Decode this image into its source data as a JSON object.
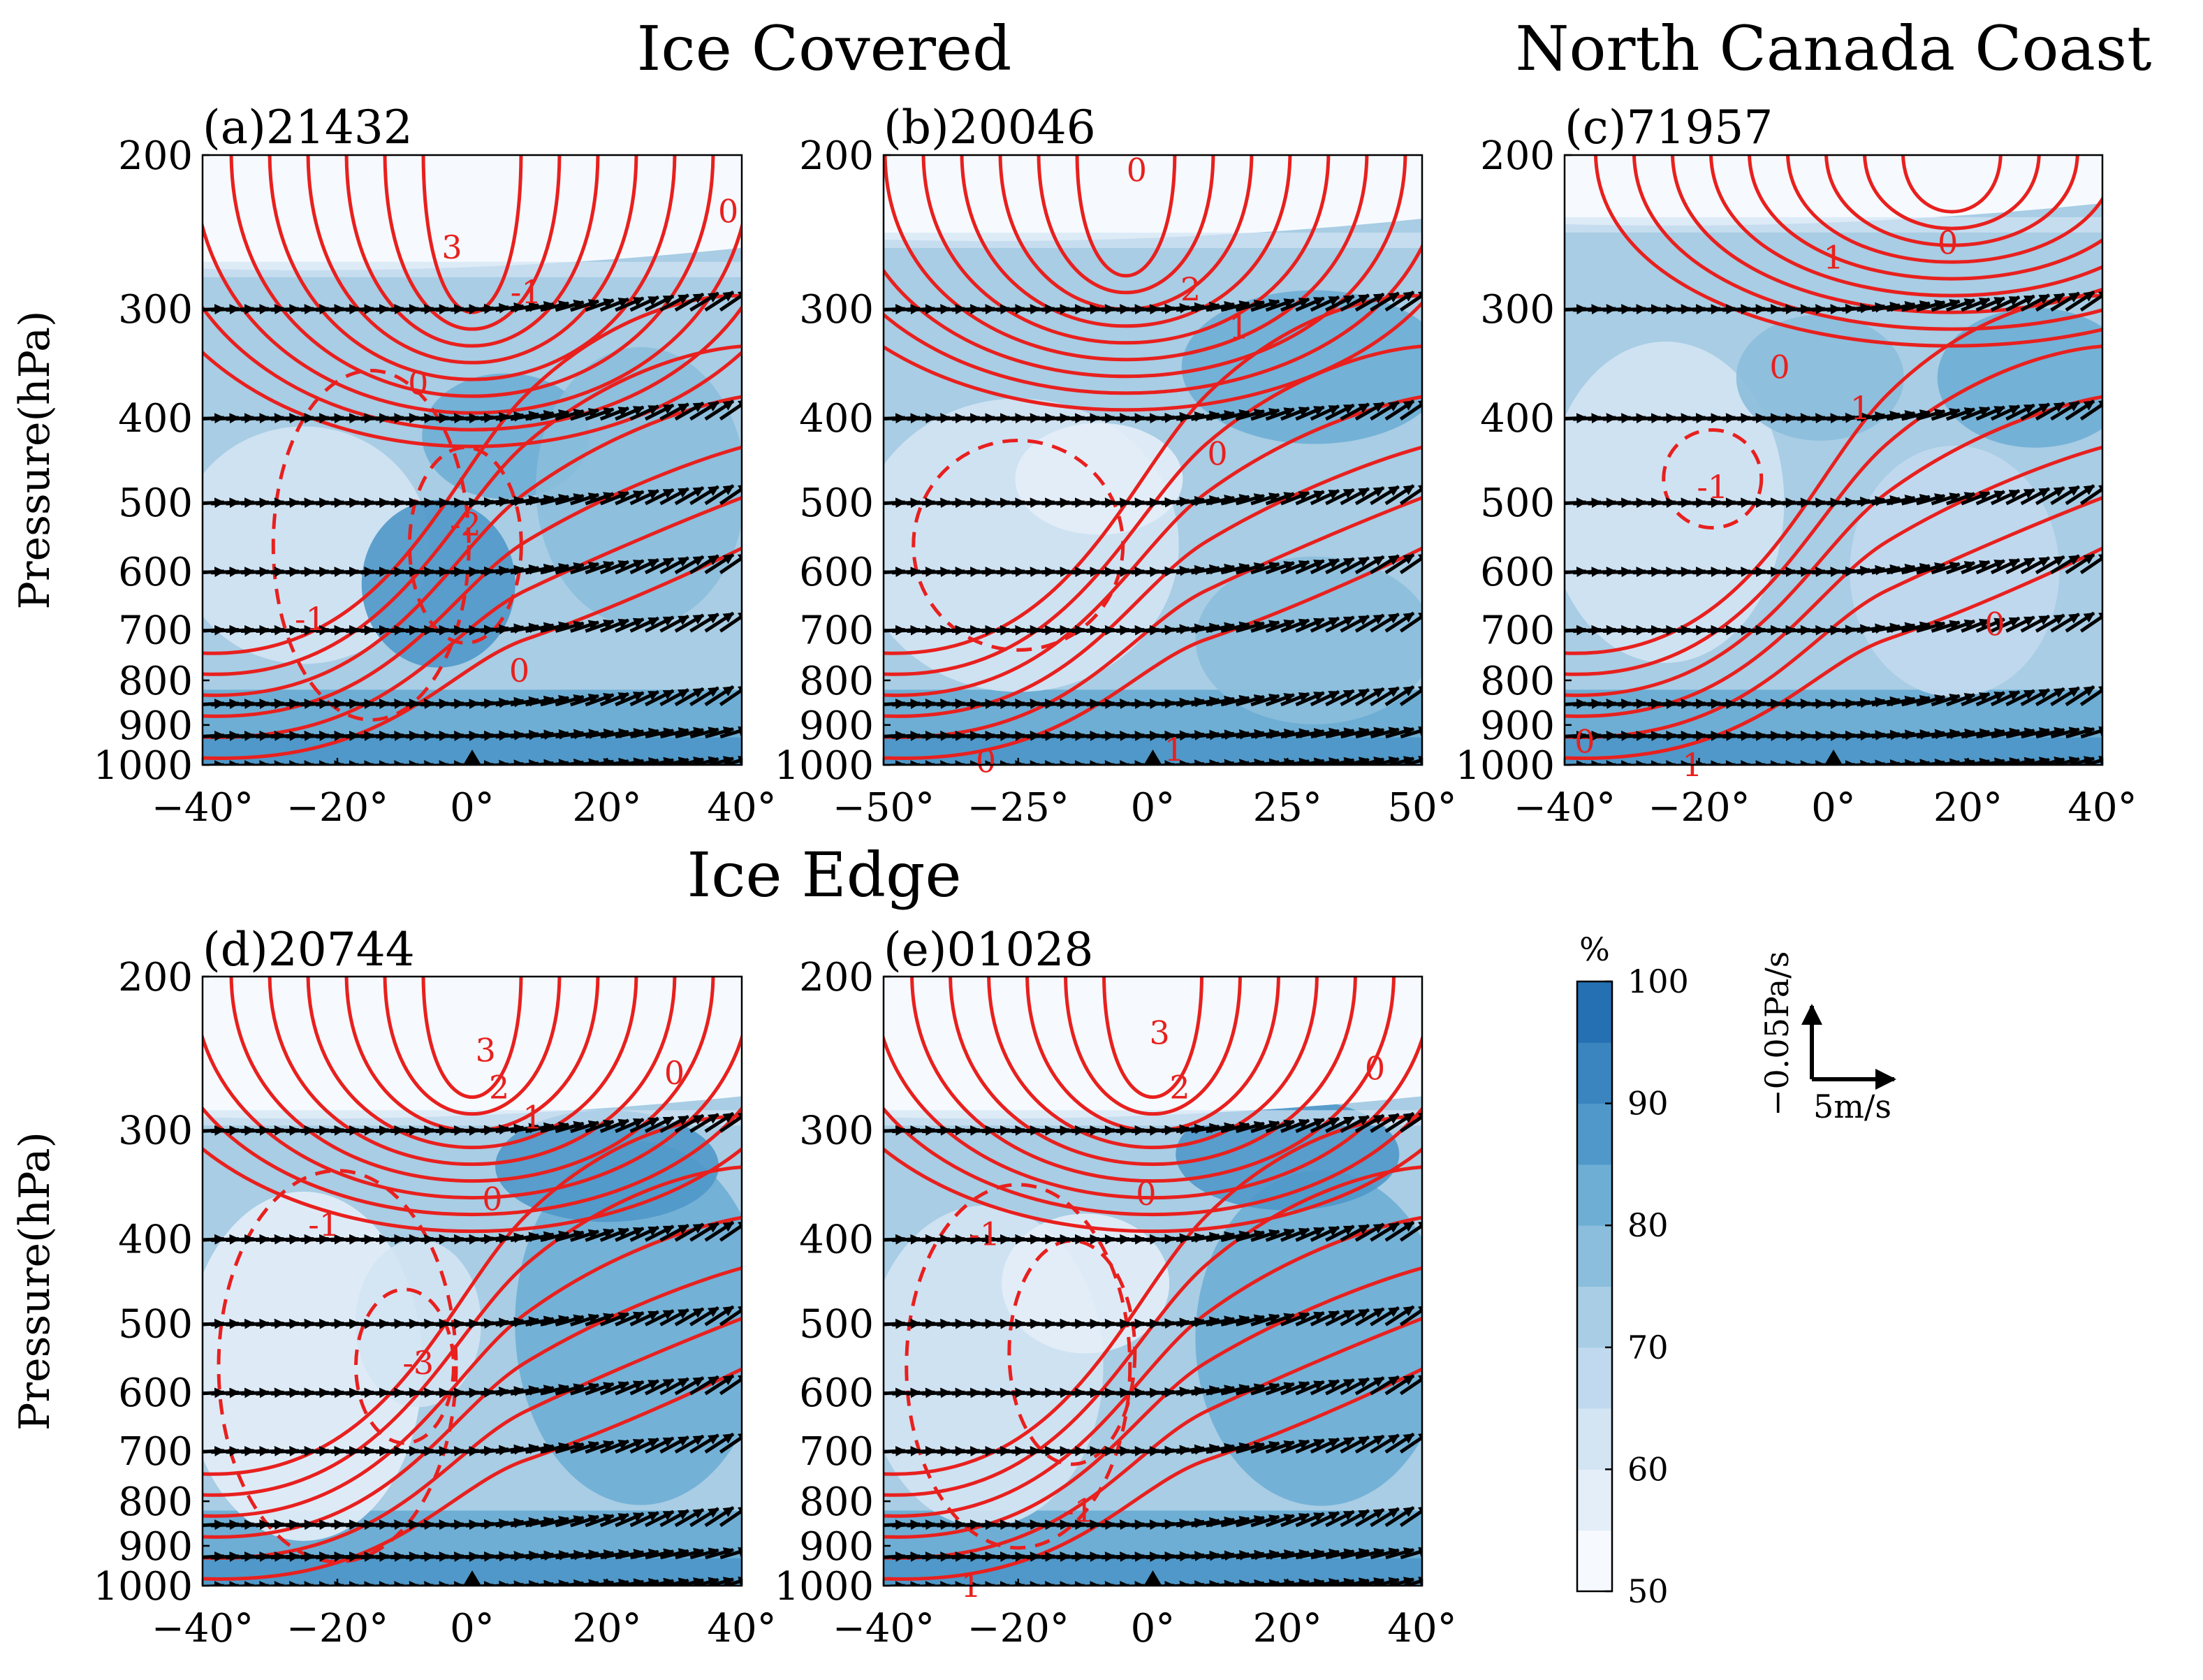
{
  "chart_data": [
    {
      "type": "heatmap",
      "panel": "(a)21432",
      "group_title": "Ice Covered",
      "ylabel": "Pressure(hPa)",
      "x_ticks": [
        "−40°",
        "−20°",
        "0°",
        "20°",
        "40°"
      ],
      "x_tick_values": [
        -40,
        -20,
        0,
        20,
        40
      ],
      "xlim": [
        -40,
        40
      ],
      "y_ticks": [
        "200",
        "300",
        "400",
        "500",
        "600",
        "700",
        "800",
        "900",
        "1000"
      ],
      "y_tick_values": [
        200,
        300,
        400,
        500,
        600,
        700,
        800,
        900,
        1000
      ],
      "ylim": [
        1000,
        200
      ],
      "y_scale": "log",
      "contour_labels": [
        {
          "text": "3",
          "x": -3,
          "y": 255
        },
        {
          "text": "-1",
          "x": 8,
          "y": 287
        },
        {
          "text": "0",
          "x": 38,
          "y": 232
        },
        {
          "text": "0",
          "x": -8,
          "y": 365
        },
        {
          "text": "-2",
          "x": -1,
          "y": 530
        },
        {
          "text": "-1",
          "x": -24,
          "y": 680
        },
        {
          "text": "0",
          "x": 7,
          "y": 780
        }
      ]
    },
    {
      "type": "heatmap",
      "panel": "(b)20046",
      "group_title": "",
      "ylabel": "",
      "x_ticks": [
        "−50°",
        "−25°",
        "0°",
        "25°",
        "50°"
      ],
      "x_tick_values": [
        -50,
        -25,
        0,
        25,
        50
      ],
      "xlim": [
        -50,
        50
      ],
      "y_ticks": [
        "200",
        "300",
        "400",
        "500",
        "600",
        "700",
        "800",
        "900",
        "1000"
      ],
      "y_tick_values": [
        200,
        300,
        400,
        500,
        600,
        700,
        800,
        900,
        1000
      ],
      "ylim": [
        1000,
        200
      ],
      "y_scale": "log",
      "contour_labels": [
        {
          "text": "0",
          "x": -3,
          "y": 208
        },
        {
          "text": "2",
          "x": 7,
          "y": 285
        },
        {
          "text": "1",
          "x": 16,
          "y": 315
        },
        {
          "text": "0",
          "x": 12,
          "y": 440
        },
        {
          "text": "0",
          "x": -31,
          "y": 990
        },
        {
          "text": "1",
          "x": 4,
          "y": 960
        }
      ]
    },
    {
      "type": "heatmap",
      "panel": "(c)71957",
      "group_title": "North Canada Coast",
      "ylabel": "",
      "x_ticks": [
        "−40°",
        "−20°",
        "0°",
        "20°",
        "40°"
      ],
      "x_tick_values": [
        -40,
        -20,
        0,
        20,
        40
      ],
      "xlim": [
        -40,
        40
      ],
      "y_ticks": [
        "200",
        "300",
        "400",
        "500",
        "600",
        "700",
        "800",
        "900",
        "1000"
      ],
      "y_tick_values": [
        200,
        300,
        400,
        500,
        600,
        700,
        800,
        900,
        1000
      ],
      "ylim": [
        1000,
        200
      ],
      "y_scale": "log",
      "contour_labels": [
        {
          "text": "1",
          "x": 0,
          "y": 262
        },
        {
          "text": "0",
          "x": 17,
          "y": 252
        },
        {
          "text": "0",
          "x": -8,
          "y": 350
        },
        {
          "text": "1",
          "x": 4,
          "y": 390
        },
        {
          "text": "-1",
          "x": -18,
          "y": 480
        },
        {
          "text": "0",
          "x": -37,
          "y": 940
        },
        {
          "text": "1",
          "x": -21,
          "y": 1000
        },
        {
          "text": "0",
          "x": 24,
          "y": 690
        }
      ]
    },
    {
      "type": "heatmap",
      "panel": "(d)20744",
      "group_title": "Ice Edge",
      "ylabel": "Pressure(hPa)",
      "x_ticks": [
        "−40°",
        "−20°",
        "0°",
        "20°",
        "40°"
      ],
      "x_tick_values": [
        -40,
        -20,
        0,
        20,
        40
      ],
      "xlim": [
        -40,
        40
      ],
      "y_ticks": [
        "200",
        "300",
        "400",
        "500",
        "600",
        "700",
        "800",
        "900",
        "1000"
      ],
      "y_tick_values": [
        200,
        300,
        400,
        500,
        600,
        700,
        800,
        900,
        1000
      ],
      "ylim": [
        1000,
        200
      ],
      "y_scale": "log",
      "contour_labels": [
        {
          "text": "3",
          "x": 2,
          "y": 243
        },
        {
          "text": "2",
          "x": 4,
          "y": 268
        },
        {
          "text": "1",
          "x": 9,
          "y": 290
        },
        {
          "text": "0",
          "x": 30,
          "y": 258
        },
        {
          "text": "-1",
          "x": -22,
          "y": 385
        },
        {
          "text": "0",
          "x": 3,
          "y": 360
        },
        {
          "text": "-3",
          "x": -8,
          "y": 555
        }
      ]
    },
    {
      "type": "heatmap",
      "panel": "(e)01028",
      "group_title": "",
      "ylabel": "",
      "x_ticks": [
        "−40°",
        "−20°",
        "0°",
        "20°",
        "40°"
      ],
      "x_tick_values": [
        -40,
        -20,
        0,
        20,
        40
      ],
      "xlim": [
        -40,
        40
      ],
      "y_ticks": [
        "200",
        "300",
        "400",
        "500",
        "600",
        "700",
        "800",
        "900",
        "1000"
      ],
      "y_tick_values": [
        200,
        300,
        400,
        500,
        600,
        700,
        800,
        900,
        1000
      ],
      "ylim": [
        1000,
        200
      ],
      "y_scale": "log",
      "contour_labels": [
        {
          "text": "3",
          "x": 1,
          "y": 232
        },
        {
          "text": "2",
          "x": 4,
          "y": 268
        },
        {
          "text": "0",
          "x": 33,
          "y": 255
        },
        {
          "text": "0",
          "x": -1,
          "y": 355
        },
        {
          "text": "-1",
          "x": -25,
          "y": 395
        },
        {
          "text": "-1",
          "x": -11,
          "y": 820
        },
        {
          "text": "1",
          "x": -27,
          "y": 1000
        }
      ]
    }
  ],
  "colorbar": {
    "unit": "%",
    "ticks": [
      "50",
      "60",
      "70",
      "80",
      "90",
      "100"
    ],
    "range": [
      50,
      100
    ],
    "levels": [
      50,
      55,
      60,
      65,
      70,
      75,
      80,
      85,
      90,
      95,
      100
    ],
    "colors": [
      "#f6fafe",
      "#e3eef8",
      "#d3e4f3",
      "#c1d9ee",
      "#a8cde4",
      "#8bbedc",
      "#6eaed4",
      "#4f98c9",
      "#3a85bf",
      "#2470b3",
      "#135fa5"
    ]
  },
  "vector_key": {
    "vertical_label": "−0.05Pa/s",
    "horizontal_label": "5m/s"
  },
  "contour_color": "#e8201e",
  "arrow_color": "#000000",
  "station_marker": "triangle at 0°"
}
